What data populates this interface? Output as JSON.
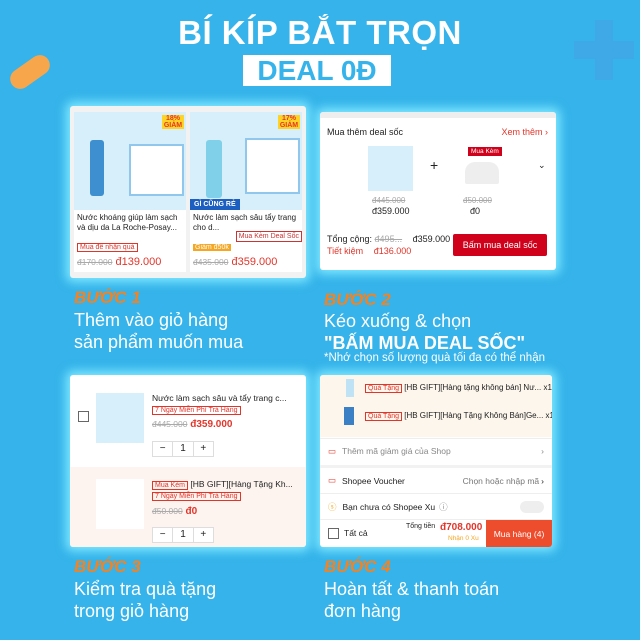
{
  "header": {
    "title": "BÍ KÍP BẮT TRỌN",
    "highlight": "DEAL 0Đ"
  },
  "colors": {
    "background": "#35b3ea",
    "step": "#f58220",
    "price": "#e2352a"
  },
  "step1": {
    "label": "BƯỚC 1",
    "line1": "Thêm vào giỏ hàng",
    "line2": "sản phẩm muốn mua",
    "products": [
      {
        "name": "Nước khoáng giúp làm sạch và dịu da La Roche-Posay...",
        "badge": "Mua để nhận quà",
        "discount": "18% GIẢM",
        "old_price": "đ170.000",
        "price": "đ139.000"
      },
      {
        "name": "Nước làm sạch sâu tẩy trang cho d...",
        "badge": "Giảm đ50k",
        "discount": "17% GIẢM",
        "old_price": "đ435.000",
        "price": "đ359.000",
        "highlight_tag": "Mua Kèm Deal Sốc",
        "ribbon": "GÌ CŨNG RẺ"
      }
    ]
  },
  "step2": {
    "label": "BƯỚC 2",
    "line1": "Kéo xuống & chọn",
    "line2": "\"BẤM MUA DEAL SỐC\"",
    "note": "*Nhớ chọn số lượng quà tối đa có thể nhận",
    "section_title": "Mua thêm deal sốc",
    "see_more": "Xem thêm",
    "items": [
      {
        "old_price": "đ445.000",
        "price": "đ359.000"
      },
      {
        "tag": "Mua Kèm",
        "old_price": "đ50.000",
        "price": "đ0"
      }
    ],
    "total_label": "Tổng cộng:",
    "total_old": "đ495...",
    "total": "đ359.000",
    "save_label": "Tiết kiệm",
    "save": "đ136.000",
    "button": "Bấm mua deal sốc"
  },
  "step3": {
    "label": "BƯỚC 3",
    "line1": "Kiểm tra quà tặng",
    "line2": "trong giỏ hàng",
    "items": [
      {
        "name": "Nước làm sạch sâu và tẩy trang c...",
        "badge": "7 Ngày Miễn Phí Trả Hàng",
        "old_price": "đ445.000",
        "price": "đ359.000",
        "qty": "1"
      },
      {
        "tag": "Mua Kèm",
        "name": "[HB GIFT][Hàng Tặng Kh...",
        "badge": "7 Ngày Miễn Phí Trả Hàng",
        "old_price": "đ50.000",
        "price": "đ0",
        "qty": "1"
      }
    ]
  },
  "step4": {
    "label": "BƯỚC 4",
    "line1": "Hoàn tất & thanh toán",
    "line2": "đơn hàng",
    "gifts": [
      {
        "tag": "Quà Tặng",
        "name": "[HB GIFT][Hàng tặng không bán] Nư...",
        "qty": "x1"
      },
      {
        "tag": "Quà Tặng",
        "name": "[HB GIFT][Hàng Tặng Không Bán]Ge...",
        "qty": "x1"
      }
    ],
    "shop_voucher": "Thêm mã giảm giá của Shop",
    "shopee_voucher": "Shopee Voucher",
    "voucher_action": "Chọn hoặc nhập mã",
    "xu": "Bạn chưa có Shopee Xu",
    "select_all": "Tất cả",
    "total_label": "Tổng tiền",
    "total": "đ708.000",
    "xu_earn": "Nhận 0 Xu",
    "button": "Mua hàng (4)"
  }
}
